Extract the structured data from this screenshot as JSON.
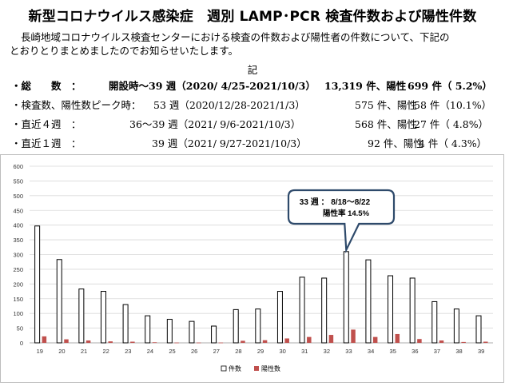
{
  "title": "新型コロナウイルス感染症　週別 LAMP･PCR 検査件数および陽性件数",
  "intro_line1": "長崎地域コロナウイルス検査センターにおける検査の件数および陽性者の件数について、下記の",
  "intro_line2": "とおりとりまとめましたのでお知らせいたします。",
  "ki": "記",
  "summary": [
    {
      "label": "・総　　数　：",
      "period": "開設時～39 週（2020/ 4/25-2021/10/3）",
      "count": "13,319 件、陽性",
      "positive": "699 件（ 5.2%）",
      "bold": true
    },
    {
      "label": "・検査数、陽性数ピーク時：",
      "period": "53 週（2020/12/28-2021/1/3）",
      "count": "575 件、陽性",
      "positive": "58 件（10.1%）",
      "bold": false
    },
    {
      "label": "・直近４週　：",
      "period": "36～39 週（2021/ 9/6-2021/10/3）",
      "count": "568 件、陽性",
      "positive": "27 件（ 4.8%）",
      "bold": false
    },
    {
      "label": "・直近１週　：",
      "period": "39 週（2021/ 9/27-2021/10/3）",
      "count": "92 件、陽性",
      "positive": "4 件（ 4.3%）",
      "bold": false
    }
  ],
  "callout": {
    "line1": "33 週 ： 8/18～8/22",
    "line2": "陽性率 14.5%"
  },
  "colors": {
    "tests_fill": "#ffffff",
    "tests_stroke": "#000000",
    "positive": "#c0504d",
    "grid": "#d9d9d9",
    "callout_border": "#2e4a6b"
  },
  "chart_data": {
    "type": "bar",
    "categories": [
      "19",
      "20",
      "21",
      "22",
      "23",
      "24",
      "25",
      "26",
      "27",
      "28",
      "29",
      "30",
      "31",
      "32",
      "33",
      "34",
      "35",
      "36",
      "37",
      "38",
      "39"
    ],
    "series": [
      {
        "name": "件数",
        "values": [
          397,
          283,
          183,
          175,
          130,
          92,
          80,
          73,
          57,
          113,
          115,
          175,
          223,
          220,
          310,
          282,
          228,
          220,
          140,
          115,
          92
        ]
      },
      {
        "name": "陽性数",
        "values": [
          22,
          12,
          8,
          5,
          4,
          2,
          1,
          1,
          1,
          7,
          9,
          15,
          20,
          27,
          45,
          20,
          30,
          13,
          8,
          3,
          4
        ]
      }
    ],
    "ylim": [
      0,
      600
    ],
    "yticks": [
      0,
      50,
      100,
      150,
      200,
      250,
      300,
      350,
      400,
      450,
      500,
      550,
      600
    ],
    "grid": true,
    "legend": "bottom"
  }
}
